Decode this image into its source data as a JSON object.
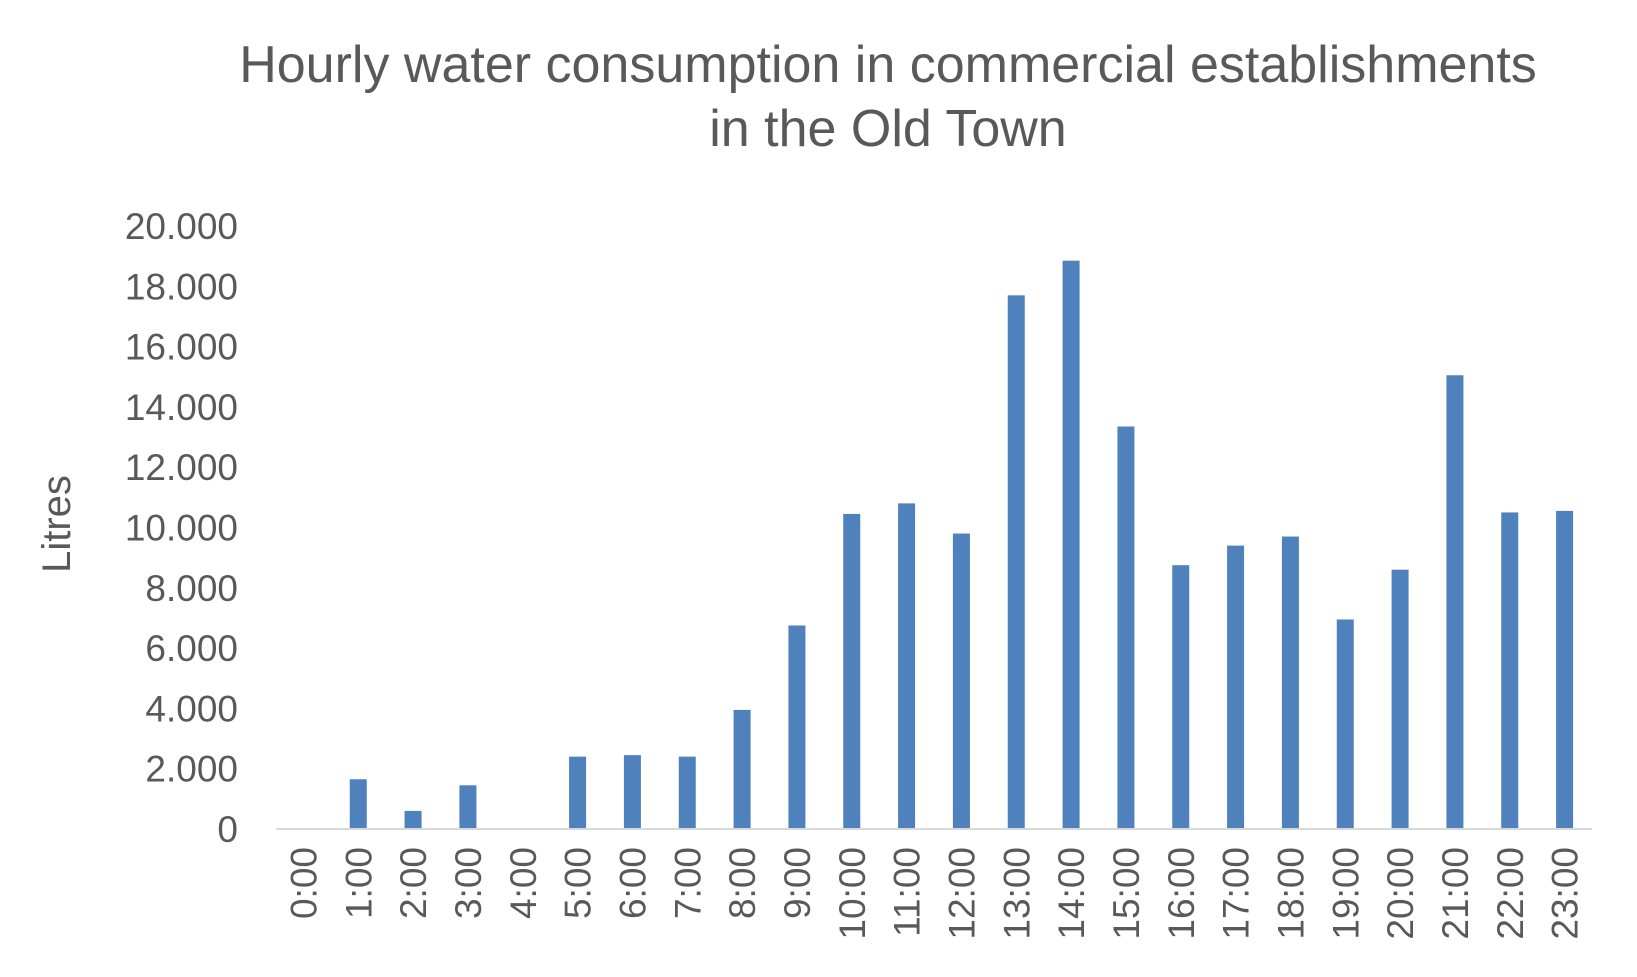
{
  "chart_data": {
    "type": "bar",
    "title_lines": [
      "Hourly water consumption in commercial establishments",
      "in the Old Town"
    ],
    "xlabel": "",
    "ylabel": "Litres",
    "categories": [
      "0:00",
      "1:00",
      "2:00",
      "3:00",
      "4:00",
      "5:00",
      "6:00",
      "7:00",
      "8:00",
      "9:00",
      "10:00",
      "11:00",
      "12:00",
      "13:00",
      "14:00",
      "15:00",
      "16:00",
      "17:00",
      "18:00",
      "19:00",
      "20:00",
      "21:00",
      "22:00",
      "23:00"
    ],
    "values": [
      0,
      1650,
      600,
      1450,
      0,
      2400,
      2450,
      2400,
      3950,
      6750,
      10450,
      10800,
      9800,
      17700,
      18850,
      13350,
      8750,
      9400,
      9700,
      6950,
      8600,
      15050,
      10500,
      10550
    ],
    "ylim": [
      0,
      20000
    ],
    "yticks": [
      0,
      2000,
      4000,
      6000,
      8000,
      10000,
      12000,
      14000,
      16000,
      18000,
      20000
    ],
    "ytick_labels": [
      "0",
      "2.000",
      "4.000",
      "6.000",
      "8.000",
      "10.000",
      "12.000",
      "14.000",
      "16.000",
      "18.000",
      "20.000"
    ],
    "grid": false,
    "legend": "none",
    "bar_color": "#4f81bd",
    "axis_color": "#d9d9d9"
  }
}
